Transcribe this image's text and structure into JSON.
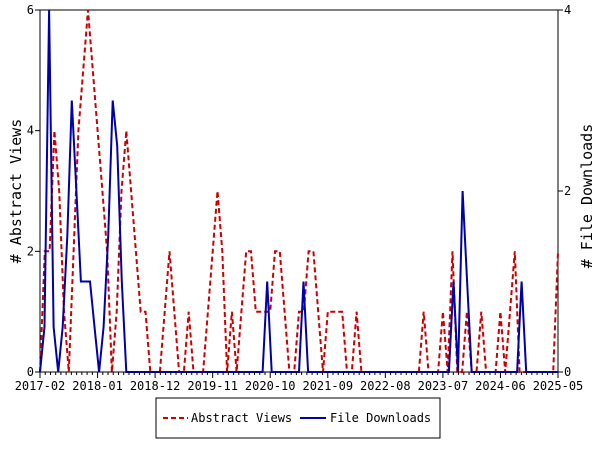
{
  "chart_data": {
    "type": "line",
    "x_tick_labels": [
      "2017-02",
      "2018-01",
      "2018-12",
      "2019-11",
      "2020-10",
      "2021-09",
      "2022-08",
      "2023-07",
      "2024-06",
      "2025-05"
    ],
    "left_axis": {
      "label": "# Abstract Views",
      "ylim": [
        0,
        6
      ],
      "ticks": [
        0,
        2,
        4,
        6
      ]
    },
    "right_axis": {
      "label": "# File Downloads",
      "ylim": [
        0,
        4
      ],
      "ticks": [
        0,
        2,
        4
      ]
    },
    "grid": false,
    "legend_position": "bottom",
    "series": [
      {
        "name": "Abstract Views",
        "axis": "left",
        "color": "#cc0000",
        "dash": "dashed",
        "values": [
          0,
          2,
          2,
          4,
          3,
          1,
          0,
          2,
          4,
          5,
          6,
          5,
          4,
          3,
          2,
          0,
          1,
          3,
          4,
          3,
          2,
          1,
          1,
          0,
          0,
          0,
          1,
          2,
          1,
          0,
          0,
          1,
          0,
          0,
          0,
          1,
          2,
          3,
          2,
          0,
          1,
          0,
          1,
          2,
          2,
          1,
          1,
          1,
          1,
          2,
          2,
          1,
          0,
          0,
          1,
          1,
          2,
          2,
          1,
          0,
          1,
          1,
          1,
          1,
          0,
          0,
          1,
          0,
          0,
          0,
          0,
          0,
          0,
          0,
          0,
          0,
          0,
          0,
          0,
          0,
          1,
          0,
          0,
          0,
          1,
          0,
          2,
          0,
          0,
          1,
          0,
          0,
          1,
          0,
          0,
          0,
          1,
          0,
          1,
          2,
          0,
          0,
          0,
          0,
          0,
          0,
          0,
          0,
          2
        ]
      },
      {
        "name": "File Downloads",
        "axis": "right",
        "color": "#0000aa",
        "dash": "solid",
        "values": [
          0,
          0.5,
          4,
          0.5,
          0,
          0.5,
          1.5,
          3,
          2,
          1,
          1,
          1,
          0.5,
          0,
          0.5,
          1.5,
          3,
          2.5,
          1,
          0,
          0,
          0,
          0,
          0,
          0,
          0,
          0,
          0,
          0,
          0,
          0,
          0,
          0,
          0,
          0,
          0,
          0,
          0,
          0,
          0,
          0,
          0,
          0,
          0,
          0,
          0,
          0,
          0,
          0,
          0,
          1,
          0,
          0,
          0,
          0,
          0,
          0,
          0,
          1,
          0,
          0,
          0,
          0,
          0,
          0,
          0,
          0,
          0,
          0,
          0,
          0,
          0,
          0,
          0,
          0,
          0,
          0,
          0,
          0,
          0,
          0,
          0,
          0,
          0,
          0,
          0,
          0,
          0,
          0,
          0,
          0,
          1,
          0,
          2,
          1,
          0,
          0,
          0,
          0,
          0,
          0,
          0,
          0,
          0,
          0,
          0,
          1,
          0,
          0,
          0,
          0,
          0,
          0,
          0,
          0
        ]
      }
    ]
  }
}
